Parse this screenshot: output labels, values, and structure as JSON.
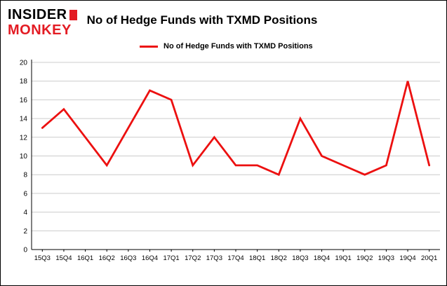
{
  "header": {
    "logo_line1": "INSIDER",
    "logo_line2": "MONKEY",
    "title": "No of Hedge Funds with TXMD Positions"
  },
  "legend": {
    "label": "No of Hedge Funds with TXMD Positions",
    "color": "#ec1010"
  },
  "colors": {
    "line": "#ec1010",
    "grid": "#cccccc",
    "axis": "#000000",
    "logo_red": "#e31b23"
  },
  "chart_data": {
    "type": "line",
    "title": "No of Hedge Funds with TXMD Positions",
    "categories": [
      "15Q3",
      "15Q4",
      "16Q1",
      "16Q2",
      "16Q3",
      "16Q4",
      "17Q1",
      "17Q2",
      "17Q3",
      "17Q4",
      "18Q1",
      "18Q2",
      "18Q3",
      "18Q4",
      "19Q1",
      "19Q2",
      "19Q3",
      "19Q4",
      "20Q1"
    ],
    "values": [
      13,
      15,
      12,
      9,
      13,
      17,
      16,
      9,
      12,
      9,
      9,
      8,
      14,
      10,
      9,
      8,
      9,
      18,
      9
    ],
    "xlabel": "",
    "ylabel": "",
    "ylim": [
      0,
      20
    ],
    "ytick_step": 2,
    "grid": true,
    "legend_position": "top-left"
  }
}
